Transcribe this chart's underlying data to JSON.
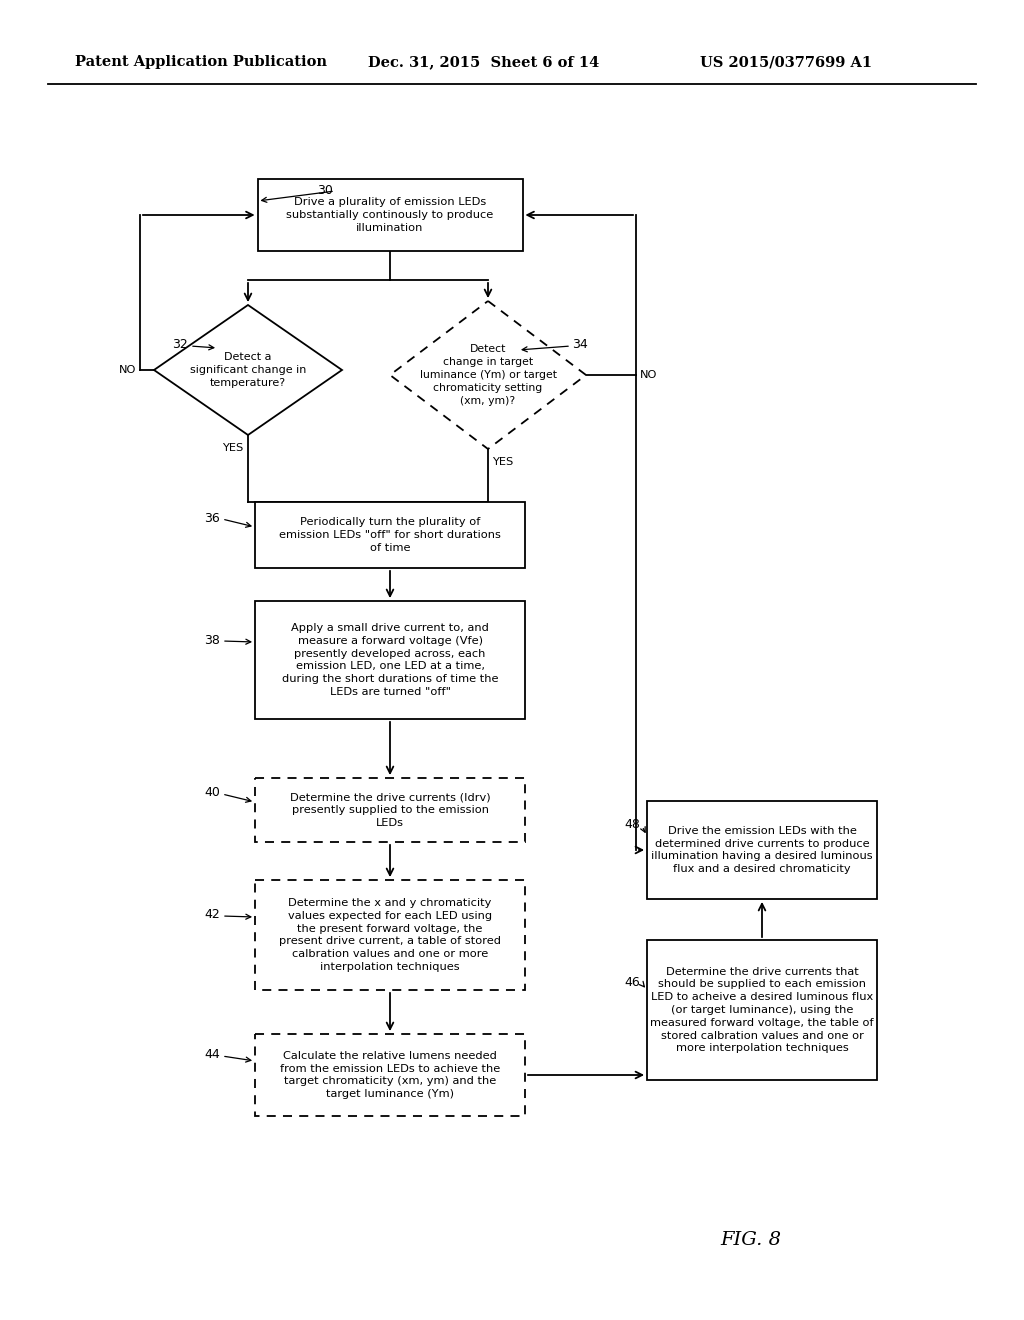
{
  "bg_color": "#ffffff",
  "header_left": "Patent Application Publication",
  "header_mid": "Dec. 31, 2015  Sheet 6 of 14",
  "header_right": "US 2015/0377699 A1",
  "fig_label": "FIG. 8",
  "box30_text": "Drive a plurality of emission LEDs\nsubstantially continously to produce\nillumination",
  "box32_text": "Detect a\nsignificant change in\ntemperature?",
  "box34_text": "Detect\nchange in target\nluminance (Ym) or target\nchromaticity setting\n(xm, ym)?",
  "box36_text": "Periodically turn the plurality of\nemission LEDs \"off\" for short durations\nof time",
  "box38_text": "Apply a small drive current to, and\nmeasure a forward voltage (Vfe)\npresently developed across, each\nemission LED, one LED at a time,\nduring the short durations of time the\nLEDs are turned \"off\"",
  "box40_text": "Determine the drive currents (Idrv)\npresently supplied to the emission\nLEDs",
  "box42_text": "Determine the x and y chromaticity\nvalues expected for each LED using\nthe present forward voltage, the\npresent drive current, a table of stored\ncalbration values and one or more\ninterpolation techniques",
  "box44_text": "Calculate the relative lumens needed\nfrom the emission LEDs to achieve the\ntarget chromaticity (xm, ym) and the\ntarget luminance (Ym)",
  "box46_text": "Determine the drive currents that\nshould be supplied to each emission\nLED to acheive a desired luminous flux\n(or target luminance), using the\nmeasured forward voltage, the table of\nstored calbration values and one or\nmore interpolation techniques",
  "box48_text": "Drive the emission LEDs with the\ndetermined drive currents to produce\nillumination having a desired luminous\nflux and a desired chromaticity"
}
